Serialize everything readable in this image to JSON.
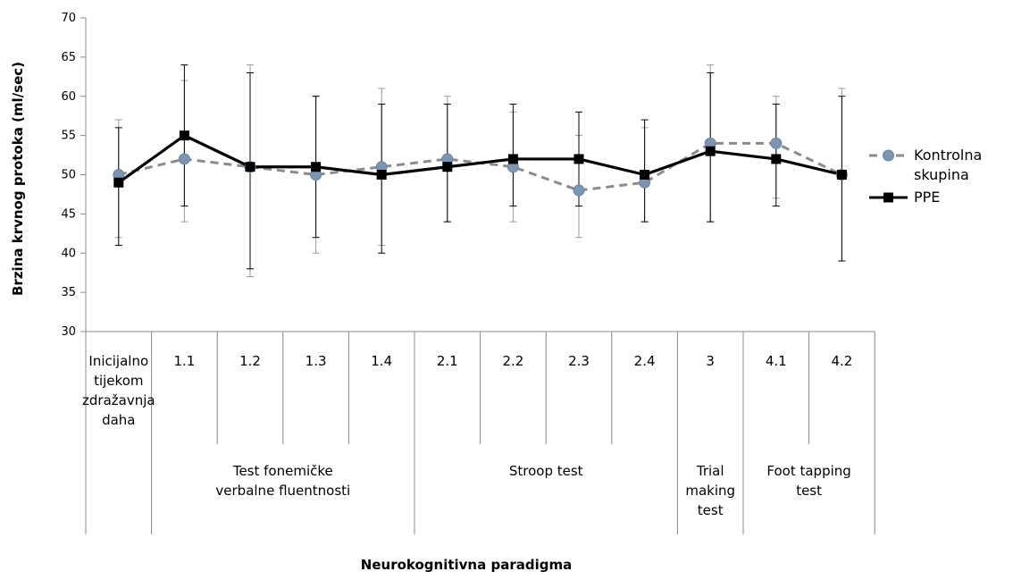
{
  "chart_data": {
    "type": "line",
    "title": "",
    "ylabel": "Brzina krvnog protoka (ml/sec)",
    "xlabel": "Neurokognitivna paradigma",
    "ylim": [
      30,
      70
    ],
    "ytick_step": 5,
    "grid": false,
    "legend_position": "right",
    "categories": [
      [
        "Inicijalno",
        "tijekom",
        "zdražavnja",
        "daha"
      ],
      [
        "1.1"
      ],
      [
        "1.2"
      ],
      [
        "1.3"
      ],
      [
        "1.4"
      ],
      [
        "2.1"
      ],
      [
        "2.2"
      ],
      [
        "2.3"
      ],
      [
        "2.4"
      ],
      [
        "3"
      ],
      [
        "4.1"
      ],
      [
        "4.2"
      ]
    ],
    "groups": [
      {
        "label": [],
        "span": [
          0,
          0
        ]
      },
      {
        "label": [
          "Test fonemičke",
          "verbalne fluentnosti"
        ],
        "span": [
          1,
          4
        ]
      },
      {
        "label": [
          "Stroop test"
        ],
        "span": [
          5,
          8
        ]
      },
      {
        "label": [
          "Trial",
          "making",
          "test"
        ],
        "span": [
          9,
          9
        ]
      },
      {
        "label": [
          "Foot tapping",
          "test"
        ],
        "span": [
          10,
          11
        ]
      }
    ],
    "series": [
      {
        "name": "Kontrolna skupina",
        "legend_lines": [
          "Kontrolna",
          "skupina"
        ],
        "color": "#8c8c8c",
        "marker_color": "#7b96b3",
        "marker": "circle",
        "dashed": true,
        "values": [
          50,
          52,
          51,
          50,
          51,
          52,
          51,
          48,
          49,
          54,
          54,
          50
        ],
        "err_low": [
          42,
          44,
          37,
          40,
          41,
          44,
          44,
          42,
          44,
          44,
          47,
          39
        ],
        "err_high": [
          57,
          62,
          64,
          60,
          61,
          60,
          58,
          55,
          56,
          64,
          60,
          61
        ]
      },
      {
        "name": "PPE",
        "legend_lines": [
          "PPE"
        ],
        "color": "#000000",
        "marker_color": "#000000",
        "marker": "square",
        "dashed": false,
        "values": [
          49,
          55,
          51,
          51,
          50,
          51,
          52,
          52,
          50,
          53,
          52,
          50
        ],
        "err_low": [
          41,
          46,
          38,
          42,
          40,
          44,
          46,
          46,
          44,
          44,
          46,
          39
        ],
        "err_high": [
          56,
          64,
          63,
          60,
          59,
          59,
          59,
          58,
          57,
          63,
          59,
          60
        ]
      }
    ]
  }
}
